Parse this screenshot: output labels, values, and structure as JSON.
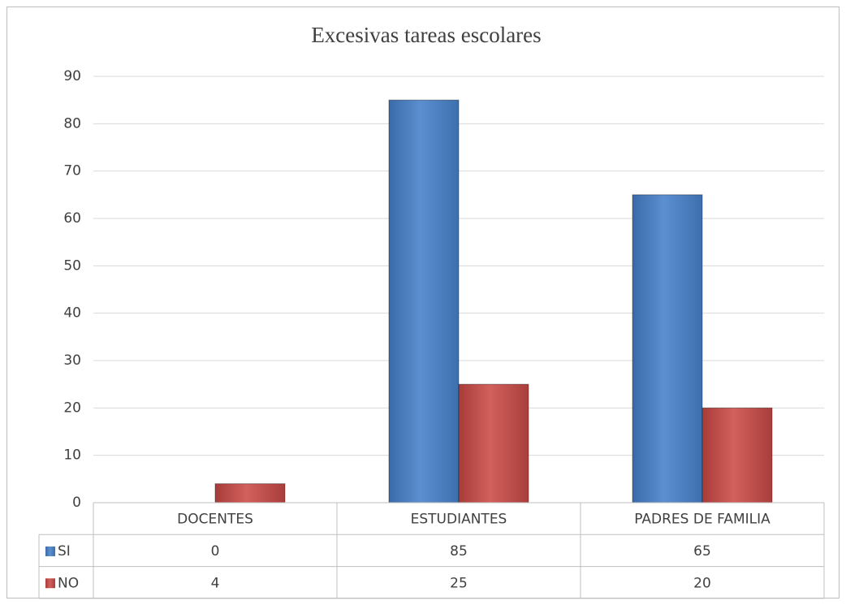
{
  "chart_data": {
    "type": "bar",
    "title": "Excesivas tareas escolares",
    "categories": [
      "DOCENTES",
      "ESTUDIANTES",
      "PADRES DE FAMILIA"
    ],
    "series": [
      {
        "name": "SI",
        "color": "#4a7ebb",
        "values": [
          0,
          85,
          65
        ]
      },
      {
        "name": "NO",
        "color": "#c0504d",
        "values": [
          4,
          25,
          20
        ]
      }
    ],
    "ylim": [
      0,
      90
    ],
    "yticks": [
      0,
      10,
      20,
      30,
      40,
      50,
      60,
      70,
      80,
      90
    ],
    "grid": true,
    "data_table": true
  }
}
